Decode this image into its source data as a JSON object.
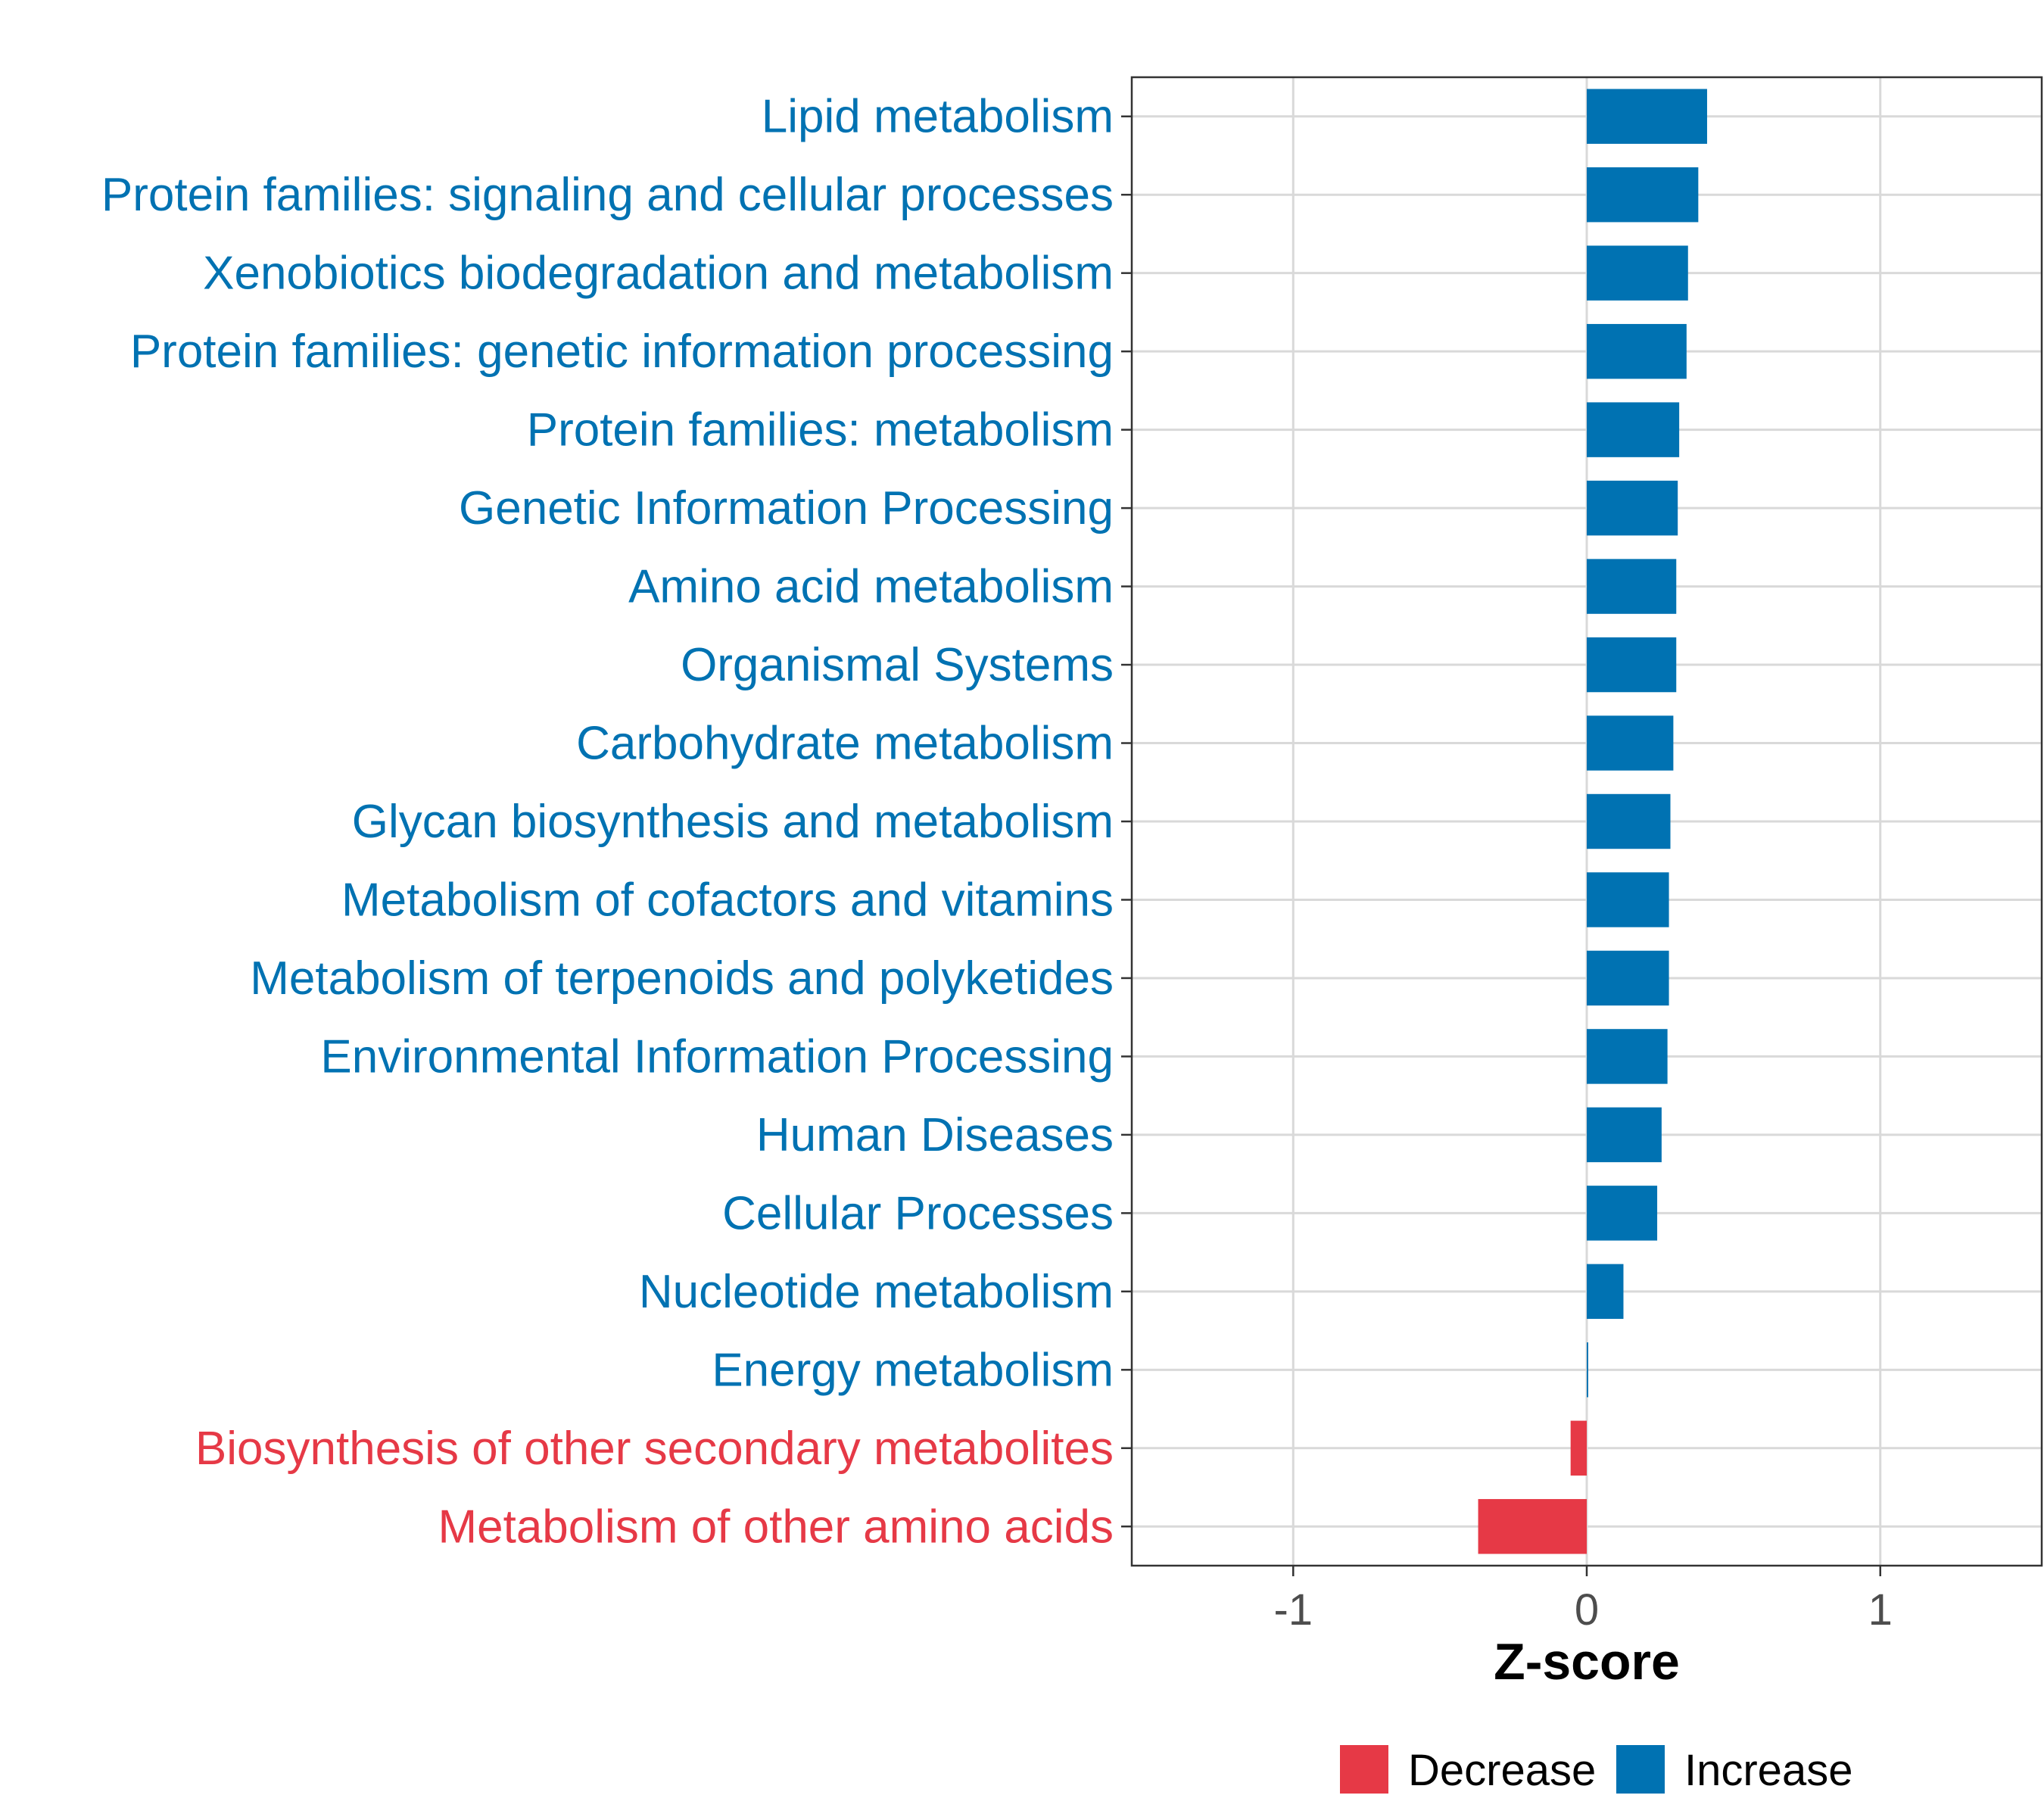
{
  "chart_data": {
    "type": "bar",
    "orientation": "horizontal",
    "xlabel": "Z-score",
    "xlim": [
      -1.55,
      1.55
    ],
    "xticks": [
      {
        "value": -1,
        "label": "-1"
      },
      {
        "value": 0,
        "label": "0"
      },
      {
        "value": 1,
        "label": "1"
      }
    ],
    "grid": true,
    "legend_position": "bottom",
    "colors": {
      "Decrease": "#e63946",
      "Increase": "#0072b2"
    },
    "legend": [
      {
        "key": "Decrease",
        "label": "Decrease"
      },
      {
        "key": "Increase",
        "label": "Increase"
      }
    ],
    "categories": [
      "Lipid metabolism",
      "Protein families: signaling and cellular processes",
      "Xenobiotics biodegradation and metabolism",
      "Protein families: genetic information processing",
      "Protein families: metabolism",
      "Genetic Information Processing",
      "Amino acid metabolism",
      "Organismal Systems",
      "Carbohydrate metabolism",
      "Glycan biosynthesis and metabolism",
      "Metabolism of cofactors and vitamins",
      "Metabolism of terpenoids and polyketides",
      "Environmental Information Processing",
      "Human Diseases",
      "Cellular Processes",
      "Nucleotide metabolism",
      "Energy metabolism",
      "Biosynthesis of other secondary metabolites",
      "Metabolism of other amino acids"
    ],
    "values": [
      0.41,
      0.38,
      0.345,
      0.34,
      0.315,
      0.31,
      0.305,
      0.305,
      0.295,
      0.285,
      0.28,
      0.28,
      0.275,
      0.255,
      0.24,
      0.125,
      0.005,
      -0.055,
      -0.37
    ],
    "groups": [
      "Increase",
      "Increase",
      "Increase",
      "Increase",
      "Increase",
      "Increase",
      "Increase",
      "Increase",
      "Increase",
      "Increase",
      "Increase",
      "Increase",
      "Increase",
      "Increase",
      "Increase",
      "Increase",
      "Increase",
      "Decrease",
      "Decrease"
    ]
  }
}
